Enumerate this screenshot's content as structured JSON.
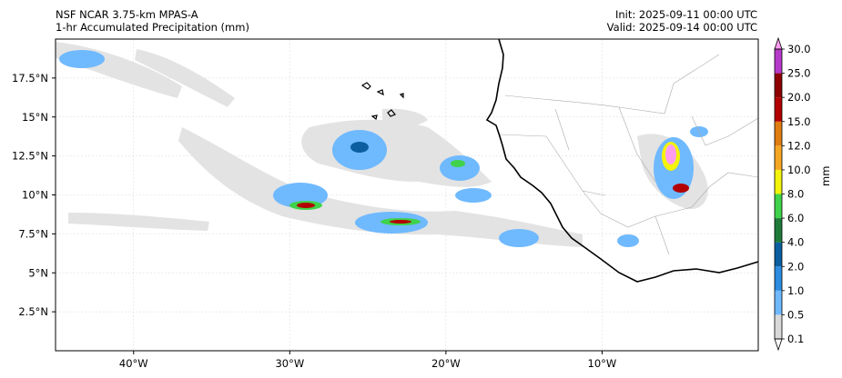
{
  "header": {
    "model_name": "NSF NCAR 3.75-km MPAS-A",
    "field_name": "1-hr Accumulated Precipitation (mm)",
    "init_time": "Init: 2025-09-11 00:00 UTC",
    "valid_time": "Valid: 2025-09-14 00:00 UTC"
  },
  "map": {
    "extent": {
      "lon_min": -45,
      "lon_max": 0,
      "lat_min": 0,
      "lat_max": 20
    },
    "lon_ticks": [
      {
        "value": -40,
        "label": "40°W"
      },
      {
        "value": -30,
        "label": "30°W"
      },
      {
        "value": -20,
        "label": "20°W"
      },
      {
        "value": -10,
        "label": "10°W"
      }
    ],
    "lat_ticks": [
      {
        "value": 17.5,
        "label": "17.5°N"
      },
      {
        "value": 15,
        "label": "15°N"
      },
      {
        "value": 12.5,
        "label": "12.5°N"
      },
      {
        "value": 10,
        "label": "10°N"
      },
      {
        "value": 7.5,
        "label": "7.5°N"
      },
      {
        "value": 5,
        "label": "5°N"
      },
      {
        "value": 2.5,
        "label": "2.5°N"
      }
    ],
    "gridlines": true
  },
  "colorbar": {
    "unit": "mm",
    "levels": [
      {
        "label": "0.1",
        "color": "#ffffff"
      },
      {
        "label": "0.5",
        "color": "#d9d9d9"
      },
      {
        "label": "1.0",
        "color": "#6fb9ff"
      },
      {
        "label": "2.0",
        "color": "#2b8ce0"
      },
      {
        "label": "4.0",
        "color": "#0b5fa0"
      },
      {
        "label": "6.0",
        "color": "#1f7a3a"
      },
      {
        "label": "8.0",
        "color": "#3fd24a"
      },
      {
        "label": "10.0",
        "color": "#f3f30b"
      },
      {
        "label": "12.0",
        "color": "#f5a623"
      },
      {
        "label": "15.0",
        "color": "#e07d10"
      },
      {
        "label": "20.0",
        "color": "#b30000"
      },
      {
        "label": "25.0",
        "color": "#8e0000"
      },
      {
        "label": "30.0",
        "color": "#b53ac9"
      }
    ],
    "over_color": "#ff9cf0",
    "under_color": "#ffffff"
  }
}
